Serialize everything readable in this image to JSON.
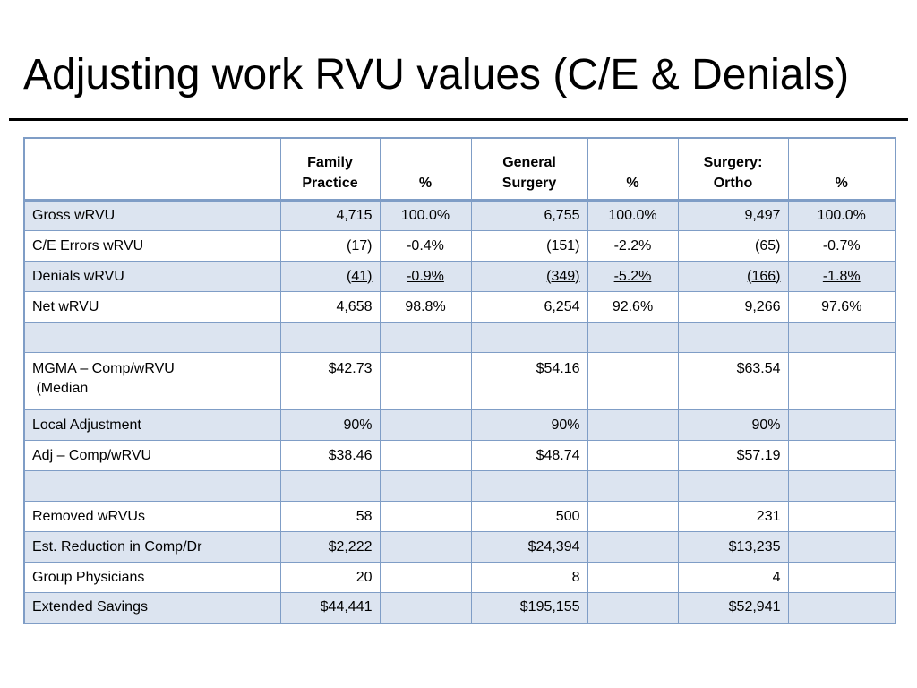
{
  "title": "Adjusting work RVU values (C/E & Denials)",
  "table": {
    "headers": {
      "col1_line1": "Family",
      "col1_line2": "Practice",
      "pct1": "%",
      "col2_line1": "General",
      "col2_line2": "Surgery",
      "pct2": "%",
      "col3_line1": "Surgery:",
      "col3_line2": "Ortho",
      "pct3": "%"
    },
    "rows": {
      "gross": {
        "label": "Gross wRVU",
        "fp": "4,715",
        "fp_pct": "100.0%",
        "gs": "6,755",
        "gs_pct": "100.0%",
        "so": "9,497",
        "so_pct": "100.0%"
      },
      "ce": {
        "label": "C/E Errors wRVU",
        "fp": "(17)",
        "fp_pct": "-0.4%",
        "gs": "(151)",
        "gs_pct": "-2.2%",
        "so": "(65)",
        "so_pct": "-0.7%"
      },
      "denials": {
        "label": "Denials wRVU",
        "fp": "(41)",
        "fp_pct": "-0.9%",
        "gs": "(349)",
        "gs_pct": "-5.2%",
        "so": "(166)",
        "so_pct": "-1.8%"
      },
      "net": {
        "label": "Net wRVU",
        "fp": "4,658",
        "fp_pct": "98.8%",
        "gs": "6,254",
        "gs_pct": "92.6%",
        "so": "9,266",
        "so_pct": "97.6%"
      },
      "mgma": {
        "label_line1": "MGMA – Comp/wRVU",
        "label_line2": " (Median",
        "fp": "$42.73",
        "gs": "$54.16",
        "so": "$63.54"
      },
      "local": {
        "label": "Local Adjustment",
        "fp": "90%",
        "gs": "90%",
        "so": "90%"
      },
      "adj": {
        "label": "Adj – Comp/wRVU",
        "fp": "$38.46",
        "gs": "$48.74",
        "so": "$57.19"
      },
      "removed": {
        "label": "Removed wRVUs",
        "fp": "58",
        "gs": "500",
        "so": "231"
      },
      "reduction": {
        "label": "Est. Reduction in Comp/Dr",
        "fp": "$2,222",
        "gs": "$24,394",
        "so": "$13,235"
      },
      "physicians": {
        "label": "Group Physicians",
        "fp": "20",
        "gs": "8",
        "so": "4"
      },
      "savings": {
        "label": "Extended Savings",
        "fp": "$44,441",
        "gs": "$195,155",
        "so": "$52,941"
      }
    }
  },
  "colors": {
    "border": "#7f9dc6",
    "shaded_row": "#dce4f0",
    "plain_row": "#ffffff",
    "text": "#000000"
  }
}
